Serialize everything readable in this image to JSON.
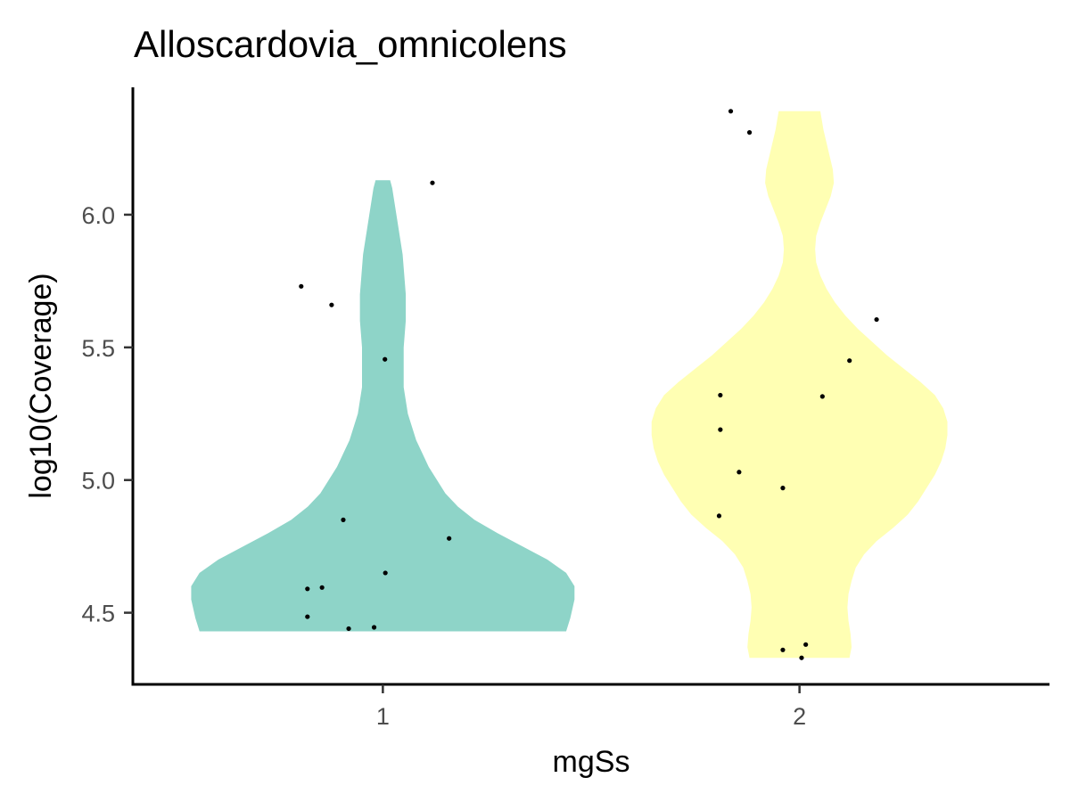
{
  "chart_data": {
    "type": "violin",
    "title": "Alloscardovia_omnicolens",
    "xlabel": "mgSs",
    "ylabel": "log10(Coverage)",
    "categories": [
      "1",
      "2"
    ],
    "ylim": [
      4.23,
      6.48
    ],
    "yticks": [
      4.5,
      5.0,
      5.5,
      6.0
    ],
    "ytick_labels": [
      "4.5",
      "5.0",
      "5.5",
      "6.0"
    ],
    "grid": false,
    "legend": "none",
    "series": [
      {
        "category": "1",
        "color": "#8ed4c8",
        "y_range": [
          4.43,
          6.13
        ],
        "density_profile": [
          [
            4.43,
            0.88
          ],
          [
            4.48,
            0.9
          ],
          [
            4.55,
            0.92
          ],
          [
            4.6,
            0.92
          ],
          [
            4.65,
            0.88
          ],
          [
            4.7,
            0.79
          ],
          [
            4.75,
            0.67
          ],
          [
            4.8,
            0.55
          ],
          [
            4.85,
            0.44
          ],
          [
            4.9,
            0.36
          ],
          [
            4.95,
            0.3
          ],
          [
            5.0,
            0.26
          ],
          [
            5.05,
            0.22
          ],
          [
            5.1,
            0.19
          ],
          [
            5.15,
            0.16
          ],
          [
            5.2,
            0.14
          ],
          [
            5.25,
            0.12
          ],
          [
            5.3,
            0.11
          ],
          [
            5.35,
            0.1
          ],
          [
            5.4,
            0.1
          ],
          [
            5.45,
            0.1
          ],
          [
            5.5,
            0.1
          ],
          [
            5.55,
            0.105
          ],
          [
            5.6,
            0.11
          ],
          [
            5.65,
            0.11
          ],
          [
            5.7,
            0.11
          ],
          [
            5.75,
            0.105
          ],
          [
            5.8,
            0.1
          ],
          [
            5.85,
            0.095
          ],
          [
            5.9,
            0.085
          ],
          [
            5.95,
            0.075
          ],
          [
            6.0,
            0.065
          ],
          [
            6.05,
            0.055
          ],
          [
            6.1,
            0.045
          ],
          [
            6.13,
            0.035
          ]
        ],
        "points": [
          {
            "jitter": -0.196,
            "y": 5.73
          },
          {
            "jitter": -0.123,
            "y": 5.66
          },
          {
            "jitter": 0.119,
            "y": 6.12
          },
          {
            "jitter": 0.005,
            "y": 5.455
          },
          {
            "jitter": -0.095,
            "y": 4.85
          },
          {
            "jitter": 0.159,
            "y": 4.78
          },
          {
            "jitter": 0.006,
            "y": 4.65
          },
          {
            "jitter": -0.181,
            "y": 4.59
          },
          {
            "jitter": -0.146,
            "y": 4.595
          },
          {
            "jitter": -0.181,
            "y": 4.485
          },
          {
            "jitter": -0.082,
            "y": 4.44
          },
          {
            "jitter": -0.021,
            "y": 4.445
          }
        ]
      },
      {
        "category": "2",
        "color": "#ffffb3",
        "y_range": [
          4.33,
          6.39
        ],
        "density_profile": [
          [
            4.33,
            0.24
          ],
          [
            4.37,
            0.25
          ],
          [
            4.42,
            0.245
          ],
          [
            4.47,
            0.235
          ],
          [
            4.52,
            0.23
          ],
          [
            4.57,
            0.235
          ],
          [
            4.62,
            0.25
          ],
          [
            4.67,
            0.27
          ],
          [
            4.72,
            0.31
          ],
          [
            4.77,
            0.37
          ],
          [
            4.82,
            0.45
          ],
          [
            4.87,
            0.52
          ],
          [
            4.92,
            0.57
          ],
          [
            4.97,
            0.61
          ],
          [
            5.02,
            0.65
          ],
          [
            5.07,
            0.68
          ],
          [
            5.12,
            0.7
          ],
          [
            5.17,
            0.71
          ],
          [
            5.22,
            0.71
          ],
          [
            5.27,
            0.69
          ],
          [
            5.32,
            0.65
          ],
          [
            5.37,
            0.58
          ],
          [
            5.42,
            0.5
          ],
          [
            5.47,
            0.42
          ],
          [
            5.52,
            0.35
          ],
          [
            5.57,
            0.28
          ],
          [
            5.62,
            0.22
          ],
          [
            5.67,
            0.17
          ],
          [
            5.72,
            0.13
          ],
          [
            5.77,
            0.1
          ],
          [
            5.82,
            0.08
          ],
          [
            5.87,
            0.075
          ],
          [
            5.92,
            0.08
          ],
          [
            5.97,
            0.1
          ],
          [
            6.02,
            0.125
          ],
          [
            6.07,
            0.15
          ],
          [
            6.12,
            0.165
          ],
          [
            6.17,
            0.16
          ],
          [
            6.22,
            0.145
          ],
          [
            6.27,
            0.13
          ],
          [
            6.32,
            0.115
          ],
          [
            6.39,
            0.1
          ]
        ],
        "points": [
          {
            "jitter": -0.165,
            "y": 6.39
          },
          {
            "jitter": -0.12,
            "y": 6.31
          },
          {
            "jitter": 0.185,
            "y": 5.605
          },
          {
            "jitter": 0.12,
            "y": 5.45
          },
          {
            "jitter": 0.055,
            "y": 5.315
          },
          {
            "jitter": -0.19,
            "y": 5.32
          },
          {
            "jitter": -0.19,
            "y": 5.19
          },
          {
            "jitter": -0.145,
            "y": 5.03
          },
          {
            "jitter": -0.04,
            "y": 4.97
          },
          {
            "jitter": -0.193,
            "y": 4.865
          },
          {
            "jitter": 0.015,
            "y": 4.38
          },
          {
            "jitter": -0.04,
            "y": 4.36
          },
          {
            "jitter": 0.005,
            "y": 4.33
          }
        ]
      }
    ]
  }
}
